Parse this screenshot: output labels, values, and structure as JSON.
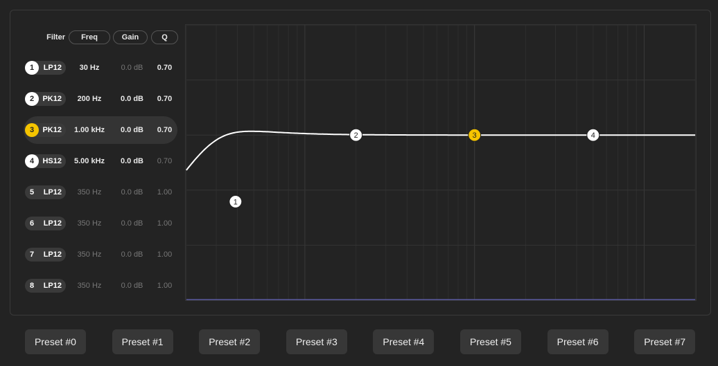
{
  "headers": {
    "filter": "Filter",
    "freq": "Freq",
    "gain": "Gain",
    "q": "Q"
  },
  "filters": [
    {
      "num": "1",
      "type": "LP12",
      "freq": "30 Hz",
      "gain": "0.0 dB",
      "q": "0.70",
      "enabled": true,
      "freq_on": true,
      "gain_on": false,
      "q_on": true
    },
    {
      "num": "2",
      "type": "PK12",
      "freq": "200 Hz",
      "gain": "0.0 dB",
      "q": "0.70",
      "enabled": true,
      "freq_on": true,
      "gain_on": true,
      "q_on": true
    },
    {
      "num": "3",
      "type": "PK12",
      "freq": "1.00 kHz",
      "gain": "0.0 dB",
      "q": "0.70",
      "enabled": true,
      "freq_on": true,
      "gain_on": true,
      "q_on": true,
      "selected": true
    },
    {
      "num": "4",
      "type": "HS12",
      "freq": "5.00 kHz",
      "gain": "0.0 dB",
      "q": "0.70",
      "enabled": true,
      "freq_on": true,
      "gain_on": true,
      "q_on": false
    },
    {
      "num": "5",
      "type": "LP12",
      "freq": "350 Hz",
      "gain": "0.0 dB",
      "q": "1.00",
      "enabled": false
    },
    {
      "num": "6",
      "type": "LP12",
      "freq": "350 Hz",
      "gain": "0.0 dB",
      "q": "1.00",
      "enabled": false
    },
    {
      "num": "7",
      "type": "LP12",
      "freq": "350 Hz",
      "gain": "0.0 dB",
      "q": "1.00",
      "enabled": false
    },
    {
      "num": "8",
      "type": "LP12",
      "freq": "350 Hz",
      "gain": "0.0 dB",
      "q": "1.00",
      "enabled": false
    }
  ],
  "graph": {
    "handles": [
      {
        "label": "1",
        "freq_hz": 30,
        "gain_db": -3.1
      },
      {
        "label": "2",
        "freq_hz": 200,
        "gain_db": 0
      },
      {
        "label": "3",
        "freq_hz": 1000,
        "gain_db": 0,
        "selected": true
      },
      {
        "label": "4",
        "freq_hz": 5000,
        "gain_db": 0
      }
    ]
  },
  "presets": [
    "Preset #0",
    "Preset #1",
    "Preset #2",
    "Preset #3",
    "Preset #4",
    "Preset #5",
    "Preset #6",
    "Preset #7"
  ],
  "colors": {
    "accent": "#f5c400",
    "text": "#e8e8e8",
    "dim": "#777777",
    "curve": "#ffffff"
  }
}
